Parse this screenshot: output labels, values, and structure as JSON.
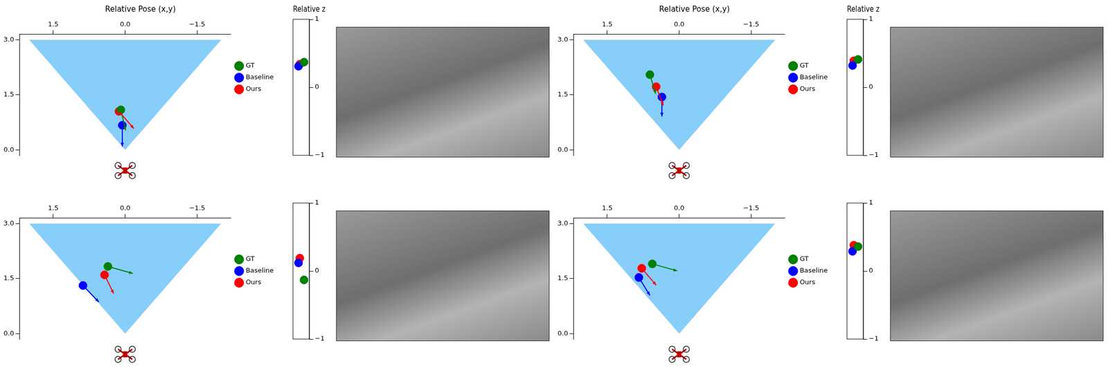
{
  "chart_data": [
    {
      "type": "scatter",
      "title": "Relative Pose (x,y)",
      "xlim": [
        2.2,
        -2.2
      ],
      "ylim": [
        -0.15,
        3.15
      ],
      "xticks": [
        1.5,
        {
          "value": 0,
          "label": "0.0"
        },
        {
          "value": -1.5,
          "label": "−1.5"
        }
      ],
      "yticks": [
        {
          "value": 0,
          "label": "0.0"
        },
        1.5,
        {
          "value": 3,
          "label": "3.0"
        }
      ],
      "grid": false,
      "legend": "right",
      "field_of_view": {
        "x": [
          2,
          -2,
          0
        ],
        "y": [
          3,
          3,
          0
        ],
        "color": "#87cefa"
      },
      "series": [
        {
          "name": "GT",
          "color": "#008000",
          "marker": "circle",
          "x": [
            0.09
          ],
          "y": [
            1.09
          ],
          "arrow_x": [
            -0.01
          ],
          "arrow_y": [
            0.53
          ]
        },
        {
          "name": "Baseline",
          "color": "#0000ff",
          "marker": "circle",
          "x": [
            0.06
          ],
          "y": [
            0.67
          ],
          "arrow_x": [
            0.06
          ],
          "arrow_y": [
            0.09
          ]
        },
        {
          "name": "Ours",
          "color": "#ff0000",
          "marker": "circle",
          "x": [
            0.13
          ],
          "y": [
            1.05
          ],
          "arrow_x": [
            -0.18
          ],
          "arrow_y": [
            0.58
          ]
        }
      ]
    },
    {
      "type": "scatter",
      "title": "Relative z",
      "ylim": [
        -1,
        1
      ],
      "yticks": [
        {
          "value": -1,
          "label": "−1"
        },
        0,
        1
      ],
      "tick_labels": "y",
      "series": [
        {
          "name": "GT",
          "color": "#008000",
          "values": [
            0.37
          ]
        },
        {
          "name": "Baseline",
          "color": "#0000ff",
          "values": [
            0.31
          ]
        },
        {
          "name": "Ours",
          "color": "#ff0000",
          "values": [
            0.34
          ]
        }
      ]
    },
    {
      "type": "scatter",
      "title": "Relative Pose (x,y)",
      "xlim": [
        2.2,
        -2.2
      ],
      "ylim": [
        -0.15,
        3.15
      ],
      "xticks": [
        1.5,
        {
          "value": 0,
          "label": "0.0"
        },
        {
          "value": -1.5,
          "label": "−1.5"
        }
      ],
      "yticks": [
        {
          "value": 0,
          "label": "0.0"
        },
        1.5,
        {
          "value": 3,
          "label": "3.0"
        }
      ],
      "grid": false,
      "legend": "right",
      "field_of_view": {
        "x": [
          2,
          -2,
          0
        ],
        "y": [
          3,
          3,
          0
        ],
        "color": "#87cefa"
      },
      "series": [
        {
          "name": "GT",
          "color": "#008000",
          "marker": "circle",
          "x": [
            0.61
          ],
          "y": [
            2.05
          ],
          "arrow_x": [
            0.49
          ],
          "arrow_y": [
            1.53
          ]
        },
        {
          "name": "Baseline",
          "color": "#0000ff",
          "marker": "circle",
          "x": [
            0.36
          ],
          "y": [
            1.44
          ],
          "arrow_x": [
            0.36
          ],
          "arrow_y": [
            0.91
          ]
        },
        {
          "name": "Ours",
          "color": "#ff0000",
          "marker": "circle",
          "x": [
            0.48
          ],
          "y": [
            1.72
          ],
          "arrow_x": [
            0.33
          ],
          "arrow_y": [
            1.21
          ]
        }
      ]
    },
    {
      "type": "scatter",
      "title": "Relative z",
      "ylim": [
        -1,
        1
      ],
      "yticks": [
        {
          "value": -1,
          "label": "−1"
        },
        0,
        1
      ],
      "tick_labels": "y",
      "series": [
        {
          "name": "GT",
          "color": "#008000",
          "values": [
            0.41
          ]
        },
        {
          "name": "Baseline",
          "color": "#0000ff",
          "values": [
            0.32
          ]
        },
        {
          "name": "Ours",
          "color": "#ff0000",
          "values": [
            0.39
          ]
        }
      ]
    },
    {
      "type": "scatter",
      "xlim": [
        2.2,
        -2.2
      ],
      "ylim": [
        -0.15,
        3.15
      ],
      "xticks": [
        1.5,
        {
          "value": 0,
          "label": "0.0"
        },
        {
          "value": -1.5,
          "label": "−1.5"
        }
      ],
      "yticks": [
        {
          "value": 0,
          "label": "0.0"
        },
        1.5,
        {
          "value": 3,
          "label": "3.0"
        }
      ],
      "grid": false,
      "legend": "right",
      "field_of_view": {
        "x": [
          2,
          -2,
          0
        ],
        "y": [
          3,
          3,
          0
        ],
        "color": "#87cefa"
      },
      "series": [
        {
          "name": "GT",
          "color": "#008000",
          "marker": "circle",
          "x": [
            0.36
          ],
          "y": [
            1.83
          ],
          "arrow_x": [
            -0.16
          ],
          "arrow_y": [
            1.64
          ]
        },
        {
          "name": "Baseline",
          "color": "#0000ff",
          "marker": "circle",
          "x": [
            0.88
          ],
          "y": [
            1.31
          ],
          "arrow_x": [
            0.55
          ],
          "arrow_y": [
            0.86
          ]
        },
        {
          "name": "Ours",
          "color": "#ff0000",
          "marker": "circle",
          "x": [
            0.43
          ],
          "y": [
            1.6
          ],
          "arrow_x": [
            0.24
          ],
          "arrow_y": [
            1.09
          ]
        }
      ]
    },
    {
      "type": "scatter",
      "ylim": [
        -1,
        1
      ],
      "yticks": [
        {
          "value": -1,
          "label": "−1"
        },
        0,
        1
      ],
      "tick_labels": "y",
      "series": [
        {
          "name": "GT",
          "color": "#008000",
          "values": [
            -0.13
          ]
        },
        {
          "name": "Baseline",
          "color": "#0000ff",
          "values": [
            0.12
          ]
        },
        {
          "name": "Ours",
          "color": "#ff0000",
          "values": [
            0.19
          ]
        }
      ]
    },
    {
      "type": "scatter",
      "xlim": [
        2.2,
        -2.2
      ],
      "ylim": [
        -0.15,
        3.15
      ],
      "xticks": [
        1.5,
        {
          "value": 0,
          "label": "0.0"
        },
        {
          "value": -1.5,
          "label": "−1.5"
        }
      ],
      "yticks": [
        {
          "value": 0,
          "label": "0.0"
        },
        1.5,
        {
          "value": 3,
          "label": "3.0"
        }
      ],
      "grid": false,
      "legend": "right",
      "field_of_view": {
        "x": [
          2,
          -2,
          0
        ],
        "y": [
          3,
          3,
          0
        ],
        "color": "#87cefa"
      },
      "series": [
        {
          "name": "GT",
          "color": "#008000",
          "marker": "circle",
          "x": [
            0.56
          ],
          "y": [
            1.9
          ],
          "arrow_x": [
            0.04
          ],
          "arrow_y": [
            1.71
          ]
        },
        {
          "name": "Baseline",
          "color": "#0000ff",
          "marker": "circle",
          "x": [
            0.84
          ],
          "y": [
            1.53
          ],
          "arrow_x": [
            0.61
          ],
          "arrow_y": [
            1.04
          ]
        },
        {
          "name": "Ours",
          "color": "#ff0000",
          "marker": "circle",
          "x": [
            0.78
          ],
          "y": [
            1.78
          ],
          "arrow_x": [
            0.48
          ],
          "arrow_y": [
            1.32
          ]
        }
      ]
    },
    {
      "type": "scatter",
      "ylim": [
        -1,
        1
      ],
      "yticks": [
        {
          "value": -1,
          "label": "−1"
        },
        0,
        1
      ],
      "tick_labels": "y",
      "series": [
        {
          "name": "GT",
          "color": "#008000",
          "values": [
            0.36
          ]
        },
        {
          "name": "Baseline",
          "color": "#0000ff",
          "values": [
            0.29
          ]
        },
        {
          "name": "Ours",
          "color": "#ff0000",
          "values": [
            0.38
          ]
        }
      ]
    }
  ]
}
